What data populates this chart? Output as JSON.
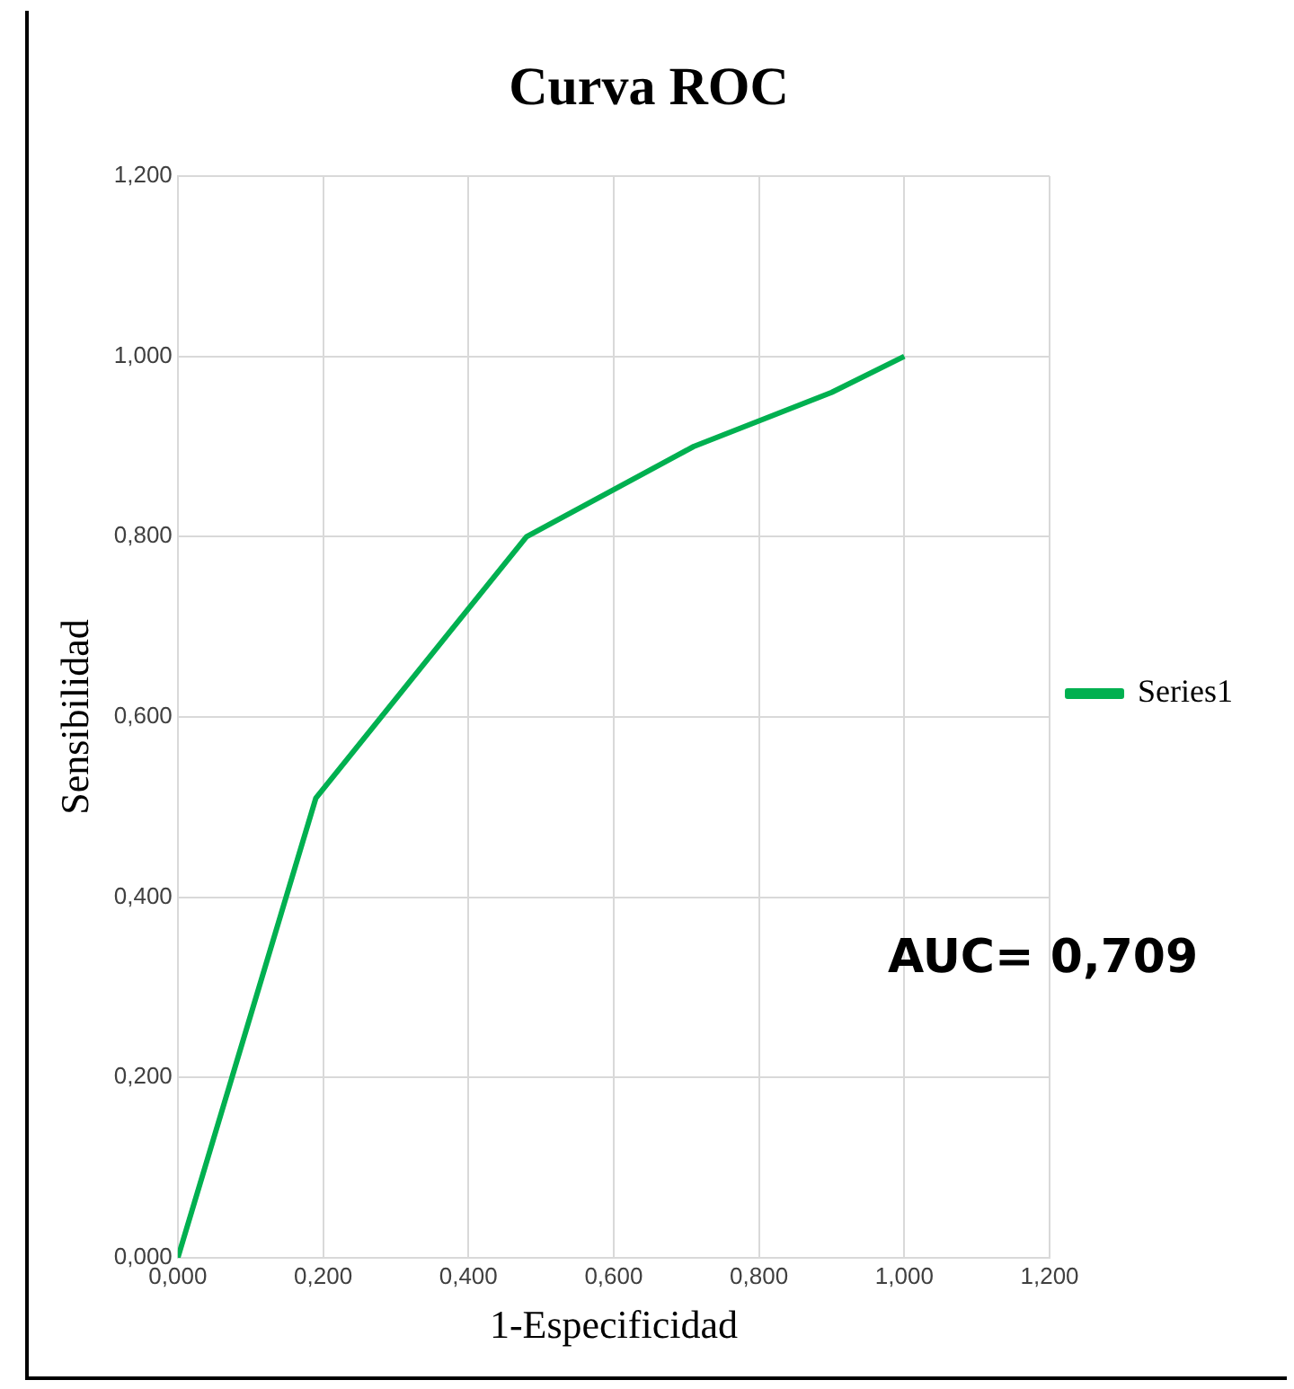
{
  "chart_data": {
    "type": "line",
    "title": "Curva ROC",
    "xlabel": "1-Especificidad",
    "ylabel": "Sensibilidad",
    "series": [
      {
        "name": "Series1",
        "color": "#00b050",
        "x": [
          0,
          0.19,
          0.48,
          0.71,
          0.9,
          1
        ],
        "values": [
          0,
          0.51,
          0.8,
          0.9,
          0.96,
          1
        ]
      }
    ],
    "xlim": [
      0,
      1.2
    ],
    "ylim": [
      0,
      1.2
    ],
    "xticks": [
      {
        "value": 0,
        "label": "0,000"
      },
      {
        "value": 0.2,
        "label": "0,200"
      },
      {
        "value": 0.4,
        "label": "0,400"
      },
      {
        "value": 0.6,
        "label": "0,600"
      },
      {
        "value": 0.8,
        "label": "0,800"
      },
      {
        "value": 1,
        "label": "1,000"
      },
      {
        "value": 1.2,
        "label": "1,200"
      }
    ],
    "yticks": [
      {
        "value": 0,
        "label": "0,000"
      },
      {
        "value": 0.2,
        "label": "0,200"
      },
      {
        "value": 0.4,
        "label": "0,400"
      },
      {
        "value": 0.6,
        "label": "0,600"
      },
      {
        "value": 0.8,
        "label": "0,800"
      },
      {
        "value": 1,
        "label": "1,000"
      },
      {
        "value": 1.2,
        "label": "1,200"
      }
    ],
    "annotations": [
      "AUC= 0,709"
    ],
    "grid": true,
    "legend": "right",
    "marker": "none",
    "line_style": "solid"
  }
}
